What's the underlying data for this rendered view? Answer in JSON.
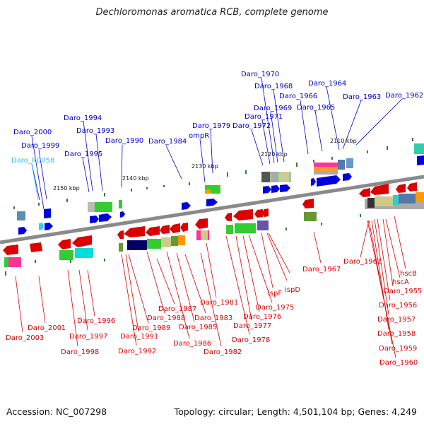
{
  "title": "Dechloromonas aromatica RCB, complete genome",
  "accession_text": "Accession: NC_007298",
  "topology_text": "Topology: circular; Length: 4,501,104 bp; Genes: 4,249",
  "colors": {
    "plus": "#0000dd",
    "minus": "#dd0000",
    "rna": "#33ccff",
    "backbone": "#888888"
  },
  "ticks": [
    "2150 kbp",
    "2140 kbp",
    "2130 kbp",
    "2120 kbp",
    "2110 kbp"
  ],
  "top_labels": [
    {
      "id": "t1",
      "text": "Daro_2000",
      "color": "#0000cc"
    },
    {
      "id": "t2",
      "text": "Daro_1999",
      "color": "#0000cc"
    },
    {
      "id": "t3",
      "text": "Daro_R0058",
      "color": "#33bbee"
    },
    {
      "id": "t4",
      "text": "Daro_1995",
      "color": "#0000cc"
    },
    {
      "id": "t5",
      "text": "Daro_1994",
      "color": "#0000cc"
    },
    {
      "id": "t6",
      "text": "Daro_1993",
      "color": "#0000cc"
    },
    {
      "id": "t7",
      "text": "Daro_1990",
      "color": "#0000cc"
    },
    {
      "id": "t8",
      "text": "Daro_1984",
      "color": "#0000cc"
    },
    {
      "id": "t9",
      "text": "ompR",
      "color": "#0000cc"
    },
    {
      "id": "t10",
      "text": "Daro_1979",
      "color": "#0000cc"
    },
    {
      "id": "t11",
      "text": "Daro_1972",
      "color": "#0000cc"
    },
    {
      "id": "t12",
      "text": "Daro_1971",
      "color": "#0000cc"
    },
    {
      "id": "t13",
      "text": "Daro_1970",
      "color": "#0000cc"
    },
    {
      "id": "t14",
      "text": "Daro_1969",
      "color": "#0000cc"
    },
    {
      "id": "t15",
      "text": "Daro_1968",
      "color": "#0000cc"
    },
    {
      "id": "t16",
      "text": "Daro_1966",
      "color": "#0000cc"
    },
    {
      "id": "t17",
      "text": "Daro_1965",
      "color": "#0000cc"
    },
    {
      "id": "t18",
      "text": "Daro_1964",
      "color": "#0000cc"
    },
    {
      "id": "t19",
      "text": "Daro_1963",
      "color": "#0000cc"
    },
    {
      "id": "t20",
      "text": "Daro_1962",
      "color": "#0000cc"
    }
  ],
  "bottom_labels": [
    {
      "id": "b1",
      "text": "Daro_2003"
    },
    {
      "id": "b2",
      "text": "Daro_2001"
    },
    {
      "id": "b3",
      "text": "Daro_1998"
    },
    {
      "id": "b4",
      "text": "Daro_1997"
    },
    {
      "id": "b5",
      "text": "Daro_1996"
    },
    {
      "id": "b6",
      "text": "Daro_1992"
    },
    {
      "id": "b7",
      "text": "Daro_1991"
    },
    {
      "id": "b8",
      "text": "Daro_1989"
    },
    {
      "id": "b9",
      "text": "Daro_1988"
    },
    {
      "id": "b10",
      "text": "Daro_1987"
    },
    {
      "id": "b11",
      "text": "Daro_1986"
    },
    {
      "id": "b12",
      "text": "Daro_1985"
    },
    {
      "id": "b13",
      "text": "Daro_1983"
    },
    {
      "id": "b14",
      "text": "Daro_1982"
    },
    {
      "id": "b15",
      "text": "Daro_1981"
    },
    {
      "id": "b16",
      "text": "Daro_1978"
    },
    {
      "id": "b17",
      "text": "Daro_1977"
    },
    {
      "id": "b18",
      "text": "Daro_1976"
    },
    {
      "id": "b19",
      "text": "Daro_1975"
    },
    {
      "id": "b20",
      "text": "ispF"
    },
    {
      "id": "b21",
      "text": "ispD"
    },
    {
      "id": "b22",
      "text": "Daro_1967"
    },
    {
      "id": "b23",
      "text": "Daro_1961"
    },
    {
      "id": "b24",
      "text": "hscB"
    },
    {
      "id": "b25",
      "text": "hscA"
    },
    {
      "id": "b26",
      "text": "Daro_1955"
    },
    {
      "id": "b27",
      "text": "Daro_1956"
    },
    {
      "id": "b28",
      "text": "Daro_1957"
    },
    {
      "id": "b29",
      "text": "Daro_1958"
    },
    {
      "id": "b30",
      "text": "Daro_1959"
    },
    {
      "id": "b31",
      "text": "Daro_1960"
    }
  ]
}
